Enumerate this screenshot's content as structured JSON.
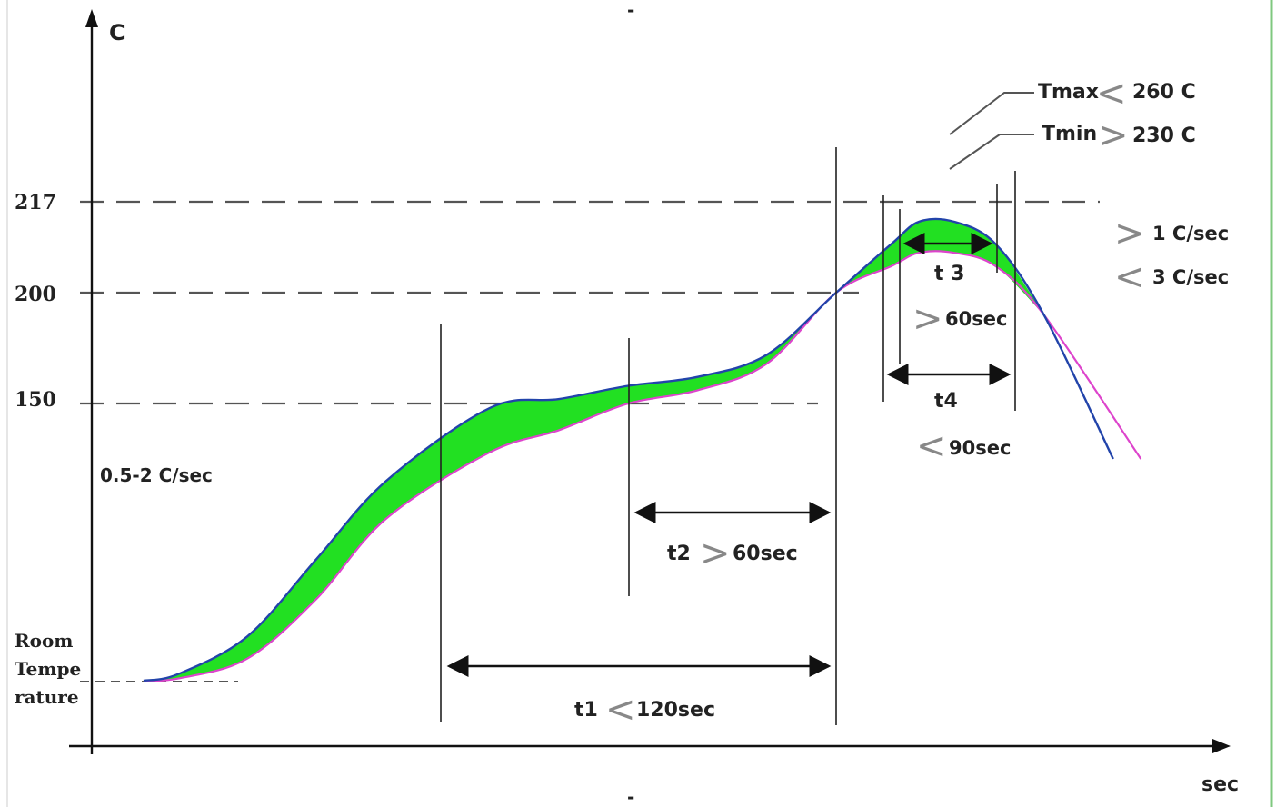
{
  "chart_data": {
    "type": "area",
    "y_axis_label": "C",
    "x_axis_label": "sec",
    "y_ticks": [
      "217",
      "200",
      "150"
    ],
    "y_bottom_label": [
      "Room",
      "Tempe",
      "rature"
    ],
    "colors": {
      "fill": "#22e022",
      "upper_line": "#2244aa",
      "lower_line": "#dd44cc",
      "axis": "#111111",
      "dash": "#555555"
    },
    "series": [
      {
        "name": "",
        "x": [
          0,
          5,
          15,
          25,
          35,
          50,
          60,
          70,
          80,
          90,
          100,
          108,
          112,
          117,
          123,
          130,
          140
        ],
        "y": [
          25,
          28,
          45,
          80,
          115,
          148,
          152,
          158,
          162,
          172,
          200,
          222,
          232,
          232,
          222,
          190,
          125
        ]
      },
      {
        "name": "",
        "x": [
          0,
          5,
          15,
          25,
          35,
          50,
          60,
          70,
          80,
          90,
          100,
          108,
          112,
          117,
          123,
          130,
          144
        ],
        "y": [
          25,
          26,
          35,
          62,
          98,
          128,
          138,
          150,
          156,
          168,
          200,
          212,
          218,
          218,
          212,
          190,
          125
        ]
      }
    ],
    "annotations": {
      "tmax": {
        "name": "Tmax",
        "sym": "<",
        "value": "260 C"
      },
      "tmin": {
        "name": "Tmin",
        "sym": ">",
        "value": "230 C"
      },
      "cool1": {
        "sym": ">",
        "text": "1 C/sec"
      },
      "cool2": {
        "sym": "<",
        "text": "3 C/sec"
      },
      "t3": {
        "name": "t 3",
        "sym": ">",
        "text": "60sec"
      },
      "t4": {
        "name": "t4",
        "sym": "<",
        "text": "90sec"
      },
      "t2": {
        "name": "t2",
        "sym": ">",
        "text": "60sec"
      },
      "t1": {
        "name": "t1",
        "sym": "<",
        "text": "120sec"
      },
      "ramp": "0.5-2 C/sec"
    }
  }
}
